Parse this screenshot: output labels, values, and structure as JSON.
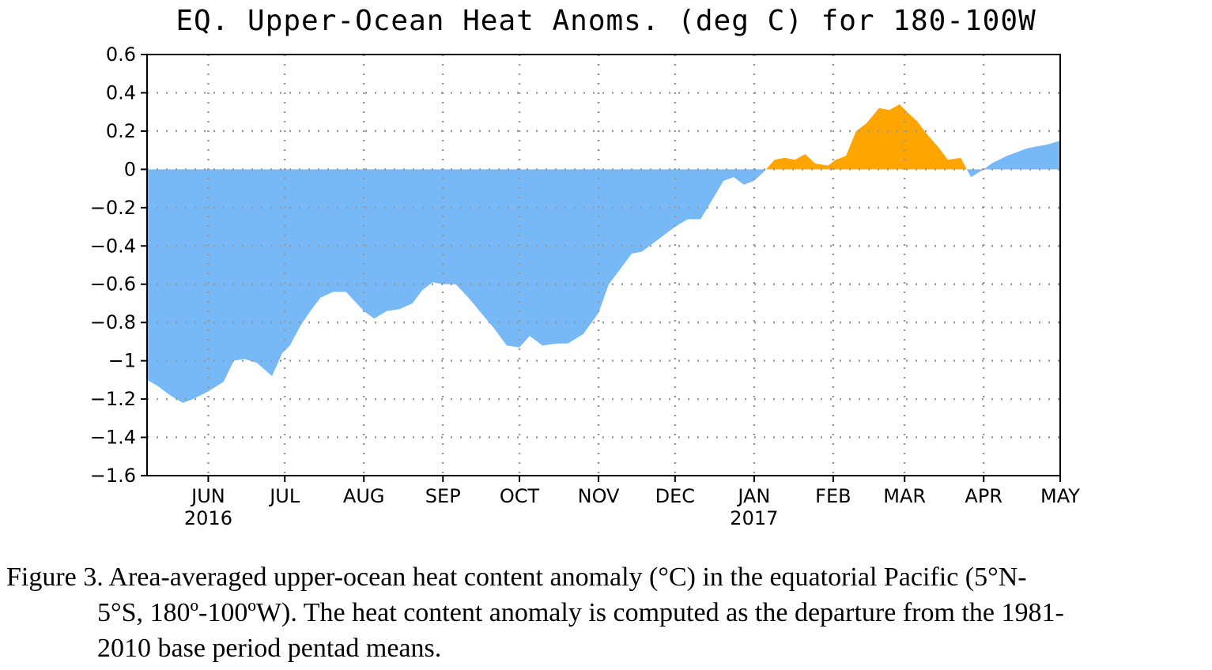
{
  "chart_data": {
    "type": "area",
    "title": "EQ. Upper-Ocean Heat Anoms. (deg C) for 180-100W",
    "xlabel": "",
    "ylabel": "",
    "ylim": [
      -1.6,
      0.6
    ],
    "yticks": [
      0.6,
      0.4,
      0.2,
      0,
      -0.2,
      -0.4,
      -0.6,
      -0.8,
      -1,
      -1.2,
      -1.4,
      -1.6
    ],
    "ytick_labels": [
      "0.6",
      "0.4",
      "0.2",
      "0",
      "−0.2",
      "−0.4",
      "−0.6",
      "−0.8",
      "−1",
      "−1.2",
      "−1.4",
      "−1.6"
    ],
    "xlim": [
      "2016-05-08",
      "2017-05-01"
    ],
    "xticks": [
      {
        "date": "2016-06-01",
        "label": "JUN",
        "year": "2016"
      },
      {
        "date": "2016-07-01",
        "label": "JUL",
        "year": ""
      },
      {
        "date": "2016-08-01",
        "label": "AUG",
        "year": ""
      },
      {
        "date": "2016-09-01",
        "label": "SEP",
        "year": ""
      },
      {
        "date": "2016-10-01",
        "label": "OCT",
        "year": ""
      },
      {
        "date": "2016-11-01",
        "label": "NOV",
        "year": ""
      },
      {
        "date": "2016-12-01",
        "label": "DEC",
        "year": ""
      },
      {
        "date": "2017-01-01",
        "label": "JAN",
        "year": "2017"
      },
      {
        "date": "2017-02-01",
        "label": "FEB",
        "year": ""
      },
      {
        "date": "2017-03-01",
        "label": "MAR",
        "year": ""
      },
      {
        "date": "2017-04-01",
        "label": "APR",
        "year": ""
      },
      {
        "date": "2017-05-01",
        "label": "MAY",
        "year": ""
      }
    ],
    "grid": true,
    "colors": {
      "positive": "#FFA500",
      "negative": "#77B8F7",
      "grid": "#999999"
    },
    "series": [
      {
        "x": [
          "2016-05-08",
          "2016-05-12",
          "2016-05-17",
          "2016-05-22",
          "2016-05-26",
          "2016-06-01",
          "2016-06-07",
          "2016-06-11",
          "2016-06-15",
          "2016-06-20",
          "2016-06-26",
          "2016-06-30",
          "2016-07-03",
          "2016-07-07",
          "2016-07-11",
          "2016-07-15",
          "2016-07-20",
          "2016-07-25",
          "2016-08-01",
          "2016-08-05",
          "2016-08-10",
          "2016-08-15",
          "2016-08-20",
          "2016-08-24",
          "2016-08-28",
          "2016-09-01",
          "2016-09-06",
          "2016-09-11",
          "2016-09-16",
          "2016-09-21",
          "2016-09-26",
          "2016-10-01",
          "2016-10-05",
          "2016-10-10",
          "2016-10-16",
          "2016-10-20",
          "2016-10-26",
          "2016-11-01",
          "2016-11-05",
          "2016-11-09",
          "2016-11-14",
          "2016-11-18",
          "2016-11-23",
          "2016-11-28",
          "2016-12-01",
          "2016-12-06",
          "2016-12-11",
          "2016-12-16",
          "2016-12-20",
          "2016-12-24",
          "2016-12-28",
          "2017-01-01",
          "2017-01-05",
          "2017-01-09",
          "2017-01-13",
          "2017-01-17",
          "2017-01-21",
          "2017-01-25",
          "2017-01-30",
          "2017-02-02",
          "2017-02-06",
          "2017-02-10",
          "2017-02-14",
          "2017-02-19",
          "2017-02-23",
          "2017-02-27",
          "2017-03-02",
          "2017-03-06",
          "2017-03-10",
          "2017-03-14",
          "2017-03-18",
          "2017-03-23",
          "2017-03-27",
          "2017-04-01",
          "2017-04-04",
          "2017-04-07",
          "2017-04-10",
          "2017-04-14",
          "2017-04-18",
          "2017-04-22",
          "2017-04-26",
          "2017-05-01"
        ],
        "y": [
          -1.1,
          -1.13,
          -1.18,
          -1.22,
          -1.2,
          -1.16,
          -1.11,
          -1.0,
          -0.99,
          -1.01,
          -1.08,
          -0.96,
          -0.92,
          -0.82,
          -0.74,
          -0.67,
          -0.64,
          -0.64,
          -0.74,
          -0.78,
          -0.74,
          -0.73,
          -0.7,
          -0.63,
          -0.59,
          -0.6,
          -0.6,
          -0.67,
          -0.75,
          -0.83,
          -0.92,
          -0.93,
          -0.87,
          -0.92,
          -0.91,
          -0.91,
          -0.86,
          -0.75,
          -0.6,
          -0.53,
          -0.44,
          -0.43,
          -0.38,
          -0.33,
          -0.3,
          -0.26,
          -0.26,
          -0.15,
          -0.06,
          -0.04,
          -0.08,
          -0.06,
          -0.01,
          0.05,
          0.06,
          0.05,
          0.08,
          0.03,
          0.02,
          0.05,
          0.07,
          0.2,
          0.24,
          0.32,
          0.31,
          0.34,
          0.3,
          0.25,
          0.18,
          0.12,
          0.05,
          0.06,
          -0.04,
          0.0,
          0.03,
          0.05,
          0.07,
          0.09,
          0.11,
          0.12,
          0.13,
          0.15
        ]
      }
    ]
  },
  "caption": {
    "line1": "Figure 3. Area-averaged upper-ocean heat content anomaly (°C) in the equatorial Pacific (5°N-",
    "line2": "5°S, 180º-100ºW). The heat content anomaly is computed as the departure from the 1981-",
    "line3": "2010 base period pentad means."
  }
}
